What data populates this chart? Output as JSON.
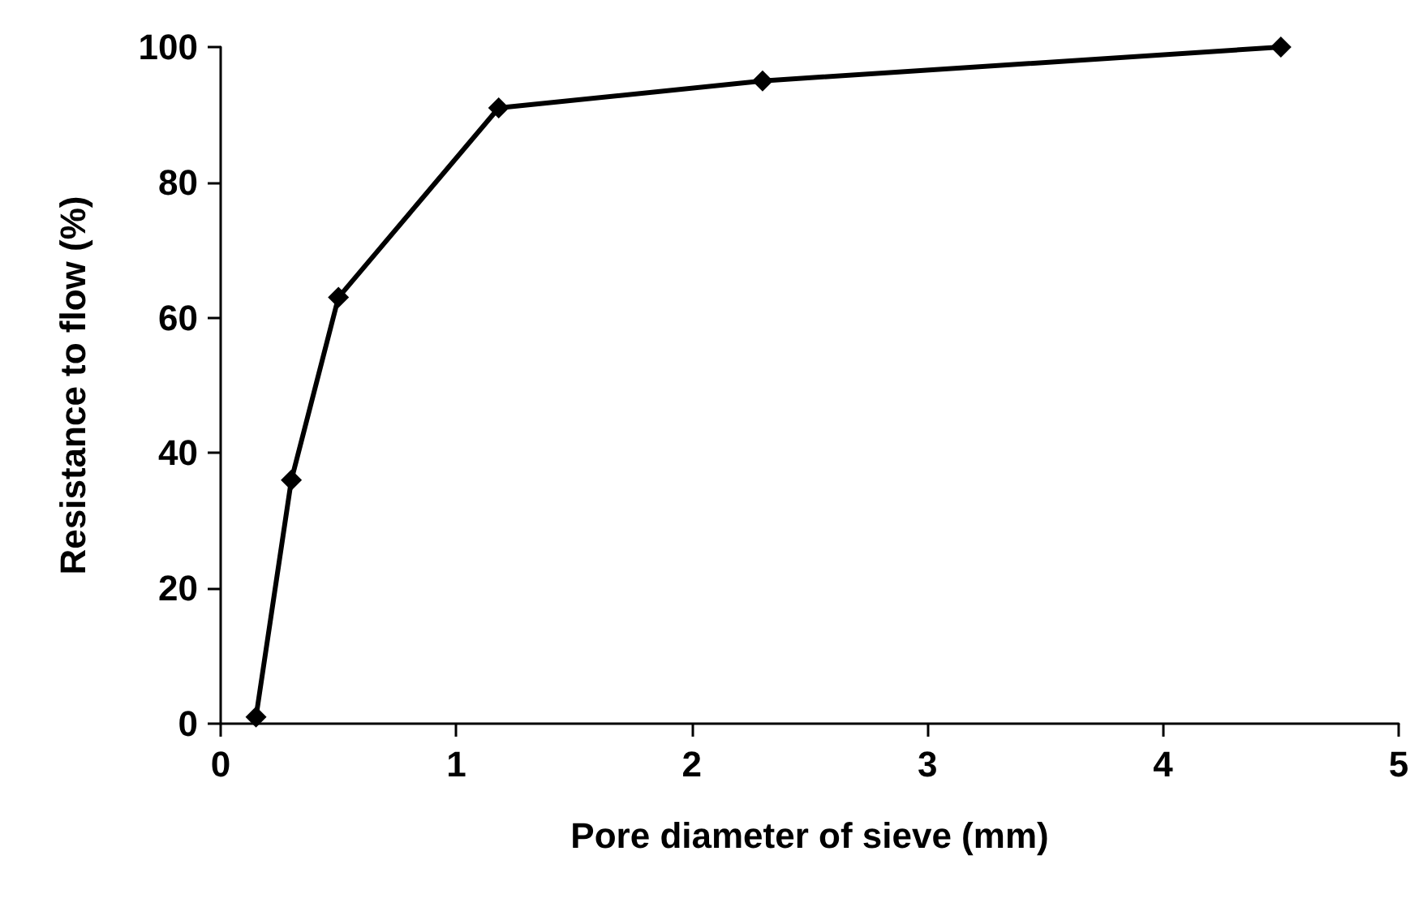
{
  "chart_data": {
    "type": "line",
    "xlabel": "Pore diameter of sieve (mm)",
    "ylabel": "Resistance to flow (%)",
    "x": [
      0.15,
      0.3,
      0.5,
      1.18,
      2.3,
      4.5
    ],
    "series": [
      {
        "color": "#000000",
        "values": [
          1,
          36,
          63,
          91,
          95,
          100
        ]
      }
    ],
    "xlim": [
      0,
      5
    ],
    "xticks": [
      0,
      1,
      2,
      3,
      4,
      5
    ],
    "ylim": [
      0,
      100
    ],
    "yticks": [
      0,
      20,
      40,
      60,
      80,
      100
    ],
    "grid": false,
    "marker": "diamond",
    "line_style": "solid"
  }
}
